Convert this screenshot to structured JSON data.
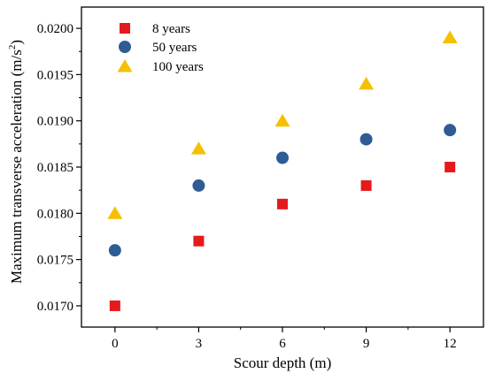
{
  "chart_data": {
    "type": "scatter",
    "xlabel": "Scour depth (m)",
    "ylabel": "Maximum transverse acceleration (m/s",
    "ylabel_sup": "2",
    "ylabel_end": ")",
    "x": [
      0,
      3,
      6,
      9,
      12
    ],
    "x_ticks": [
      "0",
      "3",
      "6",
      "9",
      "12"
    ],
    "y_ticks": [
      "0.0170",
      "0.0175",
      "0.0180",
      "0.0185",
      "0.0190",
      "0.0195",
      "0.0200"
    ],
    "xlim": [
      -1.2,
      13.2
    ],
    "ylim": [
      0.01677,
      0.02023
    ],
    "grid": false,
    "legend_position": "top-left",
    "series": [
      {
        "name": "8 years",
        "marker": "square",
        "color": "#e41a1c",
        "values": [
          0.017,
          0.0177,
          0.0181,
          0.0183,
          0.0185
        ]
      },
      {
        "name": "50 years",
        "marker": "circle",
        "color": "#2e5c94",
        "values": [
          0.0176,
          0.0183,
          0.0186,
          0.0188,
          0.0189
        ]
      },
      {
        "name": "100 years",
        "marker": "triangle",
        "color": "#f5c000",
        "values": [
          0.018,
          0.0187,
          0.019,
          0.0194,
          0.0199
        ]
      }
    ]
  }
}
